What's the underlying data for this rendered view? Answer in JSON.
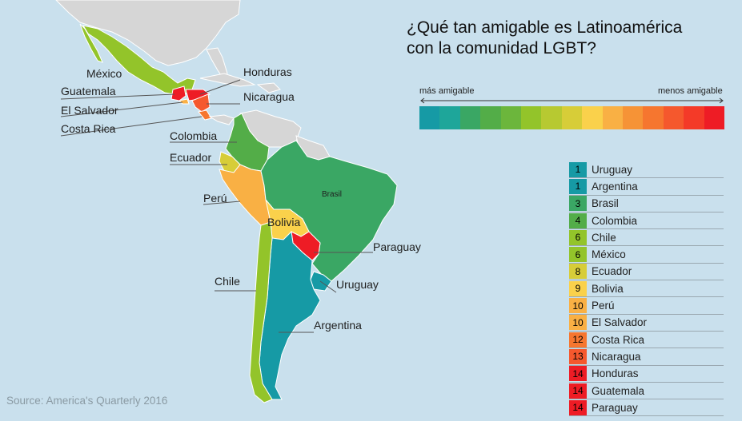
{
  "title": {
    "line1": "¿Qué tan amigable es Latinoamérica",
    "line2": "con la comunidad LGBT?"
  },
  "scale": {
    "left_label": "más amigable",
    "right_label": "menos amigable",
    "colors": [
      "#169aa5",
      "#1ea69a",
      "#3aa764",
      "#53ad48",
      "#6cb63c",
      "#93c42a",
      "#b7c931",
      "#d7cd38",
      "#fad14b",
      "#f9b044",
      "#f69336",
      "#f6762f",
      "#f5582d",
      "#f43a28",
      "#ee1c25"
    ]
  },
  "colors": {
    "water": "#c9e0ed",
    "land_other": "#d6d6d6",
    "border": "#ffffff"
  },
  "rankings": [
    {
      "rank": "1",
      "country": "Uruguay",
      "color": "#169aa5"
    },
    {
      "rank": "1",
      "country": "Argentina",
      "color": "#169aa5"
    },
    {
      "rank": "3",
      "country": "Brasil",
      "color": "#3aa764"
    },
    {
      "rank": "4",
      "country": "Colombia",
      "color": "#53ad48"
    },
    {
      "rank": "6",
      "country": "Chile",
      "color": "#93c42a"
    },
    {
      "rank": "6",
      "country": "México",
      "color": "#93c42a"
    },
    {
      "rank": "8",
      "country": "Ecuador",
      "color": "#d7cd38"
    },
    {
      "rank": "9",
      "country": "Bolivia",
      "color": "#fad14b"
    },
    {
      "rank": "10",
      "country": "Perú",
      "color": "#f9b044"
    },
    {
      "rank": "10",
      "country": "El Salvador",
      "color": "#f9b044"
    },
    {
      "rank": "12",
      "country": "Costa Rica",
      "color": "#f6762f"
    },
    {
      "rank": "13",
      "country": "Nicaragua",
      "color": "#f5582d"
    },
    {
      "rank": "14",
      "country": "Honduras",
      "color": "#ee1c25"
    },
    {
      "rank": "14",
      "country": "Guatemala",
      "color": "#ee1c25"
    },
    {
      "rank": "14",
      "country": "Paraguay",
      "color": "#ee1c25"
    }
  ],
  "map_labels": {
    "mexico": "México",
    "guatemala": "Guatemala",
    "el_salvador": "El Salvador",
    "costa_rica": "Costa Rica",
    "honduras": "Honduras",
    "nicaragua": "Nicaragua",
    "colombia": "Colombia",
    "ecuador": "Ecuador",
    "peru": "Perú",
    "brasil": "Brasil",
    "bolivia": "Bolivia",
    "paraguay": "Paraguay",
    "uruguay": "Uruguay",
    "chile": "Chile",
    "argentina": "Argentina"
  },
  "source": "Source: America's Quarterly 2016"
}
